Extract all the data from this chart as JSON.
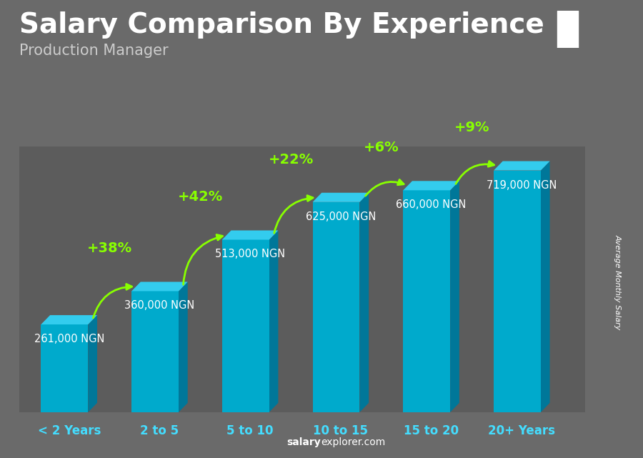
{
  "title": "Salary Comparison By Experience",
  "subtitle": "Production Manager",
  "ylabel": "Average Monthly Salary",
  "watermark_bold": "salary",
  "watermark_normal": "explorer.com",
  "categories": [
    "< 2 Years",
    "2 to 5",
    "5 to 10",
    "10 to 15",
    "15 to 20",
    "20+ Years"
  ],
  "values": [
    261000,
    360000,
    513000,
    625000,
    660000,
    719000
  ],
  "value_labels": [
    "261,000 NGN",
    "360,000 NGN",
    "513,000 NGN",
    "625,000 NGN",
    "660,000 NGN",
    "719,000 NGN"
  ],
  "pct_changes": [
    null,
    "+38%",
    "+42%",
    "+22%",
    "+6%",
    "+9%"
  ],
  "bar_color_front": "#00AACC",
  "bar_color_top": "#33CCEE",
  "bar_color_right": "#007799",
  "bg_color": "#6a6a6a",
  "title_color": "#ffffff",
  "subtitle_color": "#cccccc",
  "label_color": "#ffffff",
  "tick_color": "#44DDFF",
  "pct_color": "#88FF00",
  "arrow_color": "#88FF00",
  "nigeria_green": "#008751",
  "nigeria_white": "#ffffff",
  "title_fontsize": 28,
  "subtitle_fontsize": 15,
  "label_fontsize": 10.5,
  "tick_fontsize": 12,
  "pct_fontsize": 14,
  "ylabel_fontsize": 8
}
